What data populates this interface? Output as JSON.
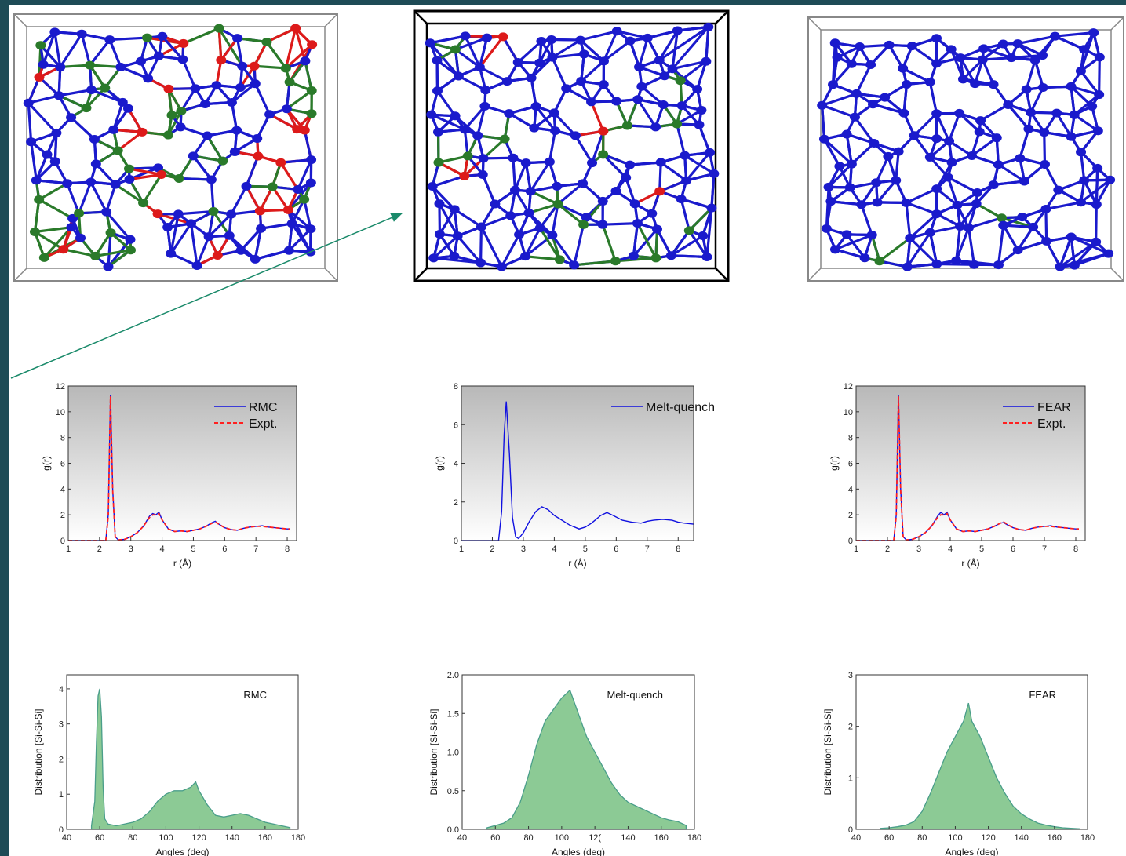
{
  "colors": {
    "si_atom": "#1a1acc",
    "green_atom": "#2a7a2a",
    "red_atom": "#dd1a1a",
    "rmc_line": "#1010e0",
    "expt_line": "#ff2020",
    "fill_green": "#7fc48a",
    "edge_teal": "#4a9e8a",
    "arrow": "#1a8a6a",
    "frame": "#1e4b56"
  },
  "models": [
    {
      "name": "rmc-structure",
      "frame": "gray",
      "red_frac": 0.18,
      "green_frac": 0.28,
      "seed": 11
    },
    {
      "name": "melt-quench-structure",
      "frame": "black",
      "red_frac": 0.04,
      "green_frac": 0.14,
      "seed": 23
    },
    {
      "name": "fear-structure",
      "frame": "gray",
      "red_frac": 0.01,
      "green_frac": 0.02,
      "seed": 37
    }
  ],
  "chart_data": [
    {
      "id": "gr-rmc",
      "type": "line",
      "xlabel": "r (Å)",
      "ylabel": "g(r)",
      "xlim": [
        1,
        8.3
      ],
      "ylim": [
        0,
        12
      ],
      "xticks": [
        "1",
        "2",
        "3",
        "4",
        "5",
        "6",
        "7",
        "8"
      ],
      "yticks": [
        "0",
        "2",
        "4",
        "6",
        "8",
        "10",
        "12"
      ],
      "series": [
        {
          "name": "RMC",
          "style": "solid",
          "x": [
            1.0,
            2.2,
            2.28,
            2.35,
            2.42,
            2.5,
            2.6,
            2.8,
            3.0,
            3.2,
            3.4,
            3.6,
            3.7,
            3.8,
            3.9,
            4.0,
            4.2,
            4.4,
            4.6,
            4.8,
            5.0,
            5.2,
            5.4,
            5.6,
            5.7,
            5.8,
            6.0,
            6.2,
            6.4,
            6.6,
            6.8,
            7.0,
            7.2,
            7.4,
            7.6,
            7.8,
            8.0,
            8.1
          ],
          "y": [
            0,
            0,
            2.0,
            11.3,
            4.0,
            0.3,
            0.05,
            0.1,
            0.3,
            0.6,
            1.1,
            1.9,
            2.1,
            2.0,
            2.2,
            1.6,
            0.9,
            0.7,
            0.75,
            0.7,
            0.8,
            0.9,
            1.1,
            1.4,
            1.5,
            1.3,
            1.0,
            0.85,
            0.8,
            0.95,
            1.05,
            1.1,
            1.15,
            1.05,
            1.0,
            0.95,
            0.9,
            0.9
          ]
        },
        {
          "name": "Expt.",
          "style": "dashed",
          "x": [
            1.0,
            2.2,
            2.28,
            2.35,
            2.42,
            2.5,
            2.6,
            2.8,
            3.0,
            3.2,
            3.4,
            3.6,
            3.7,
            3.8,
            3.9,
            4.0,
            4.2,
            4.4,
            4.6,
            4.8,
            5.0,
            5.2,
            5.4,
            5.6,
            5.7,
            5.8,
            6.0,
            6.2,
            6.4,
            6.6,
            6.8,
            7.0,
            7.2,
            7.4,
            7.6,
            7.8,
            8.0,
            8.1
          ],
          "y": [
            0,
            0,
            1.9,
            11.2,
            3.9,
            0.3,
            0.05,
            0.1,
            0.3,
            0.6,
            1.1,
            1.8,
            2.0,
            2.0,
            2.1,
            1.6,
            0.9,
            0.7,
            0.75,
            0.7,
            0.8,
            0.9,
            1.1,
            1.35,
            1.45,
            1.3,
            1.0,
            0.85,
            0.8,
            0.95,
            1.05,
            1.1,
            1.1,
            1.05,
            1.0,
            0.95,
            0.9,
            0.9
          ]
        }
      ]
    },
    {
      "id": "gr-melt",
      "type": "line",
      "xlabel": "r (Å)",
      "ylabel": "g(r)",
      "xlim": [
        1,
        8.5
      ],
      "ylim": [
        0,
        8
      ],
      "xticks": [
        "1",
        "2",
        "3",
        "4",
        "5",
        "6",
        "7",
        "8"
      ],
      "yticks": [
        "0",
        "2",
        "4",
        "6",
        "8"
      ],
      "series": [
        {
          "name": "Melt-quench",
          "style": "solid",
          "x": [
            1.0,
            2.2,
            2.3,
            2.38,
            2.45,
            2.55,
            2.65,
            2.75,
            2.85,
            3.0,
            3.2,
            3.4,
            3.6,
            3.8,
            4.0,
            4.2,
            4.5,
            4.8,
            5.0,
            5.2,
            5.5,
            5.7,
            5.9,
            6.2,
            6.5,
            6.8,
            7.0,
            7.2,
            7.5,
            7.8,
            8.0,
            8.2,
            8.5
          ],
          "y": [
            0,
            0,
            1.5,
            5.5,
            7.2,
            4.5,
            1.2,
            0.2,
            0.1,
            0.4,
            1.0,
            1.5,
            1.75,
            1.6,
            1.3,
            1.1,
            0.8,
            0.6,
            0.7,
            0.9,
            1.3,
            1.45,
            1.3,
            1.05,
            0.95,
            0.9,
            1.0,
            1.05,
            1.1,
            1.05,
            0.95,
            0.9,
            0.85
          ]
        }
      ]
    },
    {
      "id": "gr-fear",
      "type": "line",
      "xlabel": "r (Å)",
      "ylabel": "g(r)",
      "xlim": [
        1,
        8.3
      ],
      "ylim": [
        0,
        12
      ],
      "xticks": [
        "1",
        "2",
        "3",
        "4",
        "5",
        "6",
        "7",
        "8"
      ],
      "yticks": [
        "0",
        "2",
        "4",
        "6",
        "8",
        "10",
        "12"
      ],
      "series": [
        {
          "name": "FEAR",
          "style": "solid",
          "x": [
            1.0,
            2.2,
            2.28,
            2.35,
            2.42,
            2.5,
            2.6,
            2.8,
            3.0,
            3.2,
            3.4,
            3.6,
            3.7,
            3.8,
            3.9,
            4.0,
            4.2,
            4.4,
            4.6,
            4.8,
            5.0,
            5.2,
            5.4,
            5.6,
            5.7,
            5.8,
            6.0,
            6.2,
            6.4,
            6.6,
            6.8,
            7.0,
            7.2,
            7.4,
            7.6,
            7.8,
            8.0,
            8.1
          ],
          "y": [
            0,
            0,
            2.0,
            11.3,
            4.0,
            0.3,
            0.05,
            0.1,
            0.3,
            0.6,
            1.1,
            1.9,
            2.2,
            2.0,
            2.2,
            1.6,
            0.9,
            0.7,
            0.75,
            0.7,
            0.8,
            0.9,
            1.1,
            1.35,
            1.4,
            1.25,
            1.0,
            0.85,
            0.8,
            0.95,
            1.05,
            1.1,
            1.15,
            1.05,
            1.0,
            0.95,
            0.9,
            0.9
          ]
        },
        {
          "name": "Expt.",
          "style": "dashed",
          "x": [
            1.0,
            2.2,
            2.28,
            2.35,
            2.42,
            2.5,
            2.6,
            2.8,
            3.0,
            3.2,
            3.4,
            3.6,
            3.7,
            3.8,
            3.9,
            4.0,
            4.2,
            4.4,
            4.6,
            4.8,
            5.0,
            5.2,
            5.4,
            5.6,
            5.7,
            5.8,
            6.0,
            6.2,
            6.4,
            6.6,
            6.8,
            7.0,
            7.2,
            7.4,
            7.6,
            7.8,
            8.0,
            8.1
          ],
          "y": [
            0,
            0,
            1.9,
            11.2,
            3.9,
            0.3,
            0.05,
            0.1,
            0.3,
            0.6,
            1.1,
            1.8,
            2.0,
            2.0,
            2.1,
            1.6,
            0.9,
            0.7,
            0.75,
            0.7,
            0.8,
            0.9,
            1.1,
            1.35,
            1.45,
            1.3,
            1.0,
            0.85,
            0.8,
            0.95,
            1.05,
            1.1,
            1.1,
            1.05,
            1.0,
            0.95,
            0.9,
            0.9
          ]
        }
      ]
    },
    {
      "id": "bad-rmc",
      "type": "area",
      "label": "RMC",
      "xlabel": "Angles (deg)",
      "ylabel": "Distribution [Si-Si-Si]",
      "xlim": [
        40,
        180
      ],
      "ylim": [
        0,
        4.4
      ],
      "xticks": [
        "40",
        "60",
        "80",
        "100",
        "120",
        "140",
        "160",
        "180"
      ],
      "yticks": [
        "0",
        "1",
        "2",
        "3",
        "4"
      ],
      "x": [
        55,
        57,
        58,
        59,
        60,
        61,
        62,
        63,
        65,
        70,
        75,
        80,
        85,
        90,
        95,
        100,
        105,
        110,
        115,
        118,
        120,
        125,
        130,
        135,
        140,
        145,
        150,
        155,
        160,
        165,
        170,
        175
      ],
      "y": [
        0.1,
        0.8,
        2.5,
        3.8,
        4.0,
        3.2,
        1.2,
        0.3,
        0.15,
        0.1,
        0.15,
        0.2,
        0.3,
        0.5,
        0.8,
        1.0,
        1.1,
        1.1,
        1.2,
        1.35,
        1.1,
        0.7,
        0.4,
        0.35,
        0.4,
        0.45,
        0.4,
        0.3,
        0.2,
        0.15,
        0.1,
        0.05
      ]
    },
    {
      "id": "bad-melt",
      "type": "area",
      "label": "Melt-quench",
      "xlabel": "Angles (deg)",
      "ylabel": "Distribution [Si-Si-Si]",
      "xlim": [
        40,
        180
      ],
      "ylim": [
        0,
        2.0
      ],
      "xticks": [
        "40",
        "60",
        "80",
        "100",
        "12(",
        "140",
        "160",
        "180"
      ],
      "yticks": [
        "0.0",
        "0.5",
        "1.0",
        "1.5",
        "2.0"
      ],
      "x": [
        55,
        60,
        65,
        70,
        75,
        80,
        85,
        90,
        95,
        100,
        105,
        110,
        115,
        120,
        125,
        130,
        135,
        140,
        145,
        150,
        155,
        160,
        165,
        170,
        175
      ],
      "y": [
        0.02,
        0.05,
        0.08,
        0.15,
        0.35,
        0.7,
        1.1,
        1.4,
        1.55,
        1.7,
        1.8,
        1.5,
        1.2,
        1.0,
        0.8,
        0.6,
        0.45,
        0.35,
        0.3,
        0.25,
        0.2,
        0.15,
        0.12,
        0.1,
        0.05
      ]
    },
    {
      "id": "bad-fear",
      "type": "area",
      "label": "FEAR",
      "xlabel": "Angles (deg)",
      "ylabel": "Distribution [Si-Si-Si]",
      "xlim": [
        40,
        180
      ],
      "ylim": [
        0,
        3.0
      ],
      "xticks": [
        "40",
        "60",
        "80",
        "100",
        "120",
        "140",
        "160",
        "180"
      ],
      "yticks": [
        "0",
        "1",
        "2",
        "3"
      ],
      "x": [
        55,
        60,
        65,
        70,
        75,
        80,
        85,
        90,
        95,
        100,
        105,
        108,
        110,
        115,
        120,
        125,
        130,
        135,
        140,
        145,
        150,
        155,
        160,
        165,
        170,
        175
      ],
      "y": [
        0.02,
        0.03,
        0.05,
        0.08,
        0.15,
        0.35,
        0.7,
        1.1,
        1.5,
        1.8,
        2.1,
        2.45,
        2.1,
        1.8,
        1.4,
        1.0,
        0.7,
        0.45,
        0.3,
        0.2,
        0.12,
        0.08,
        0.05,
        0.03,
        0.02,
        0.01
      ]
    }
  ]
}
